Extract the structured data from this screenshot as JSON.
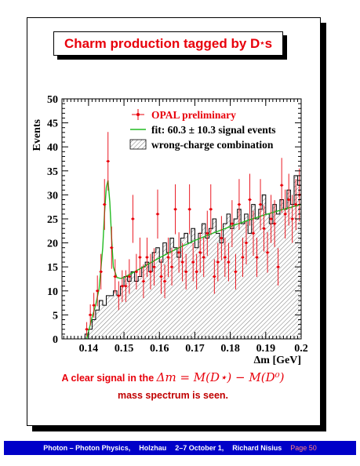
{
  "slide": {
    "title_text": "Charm production tagged by D",
    "title_star": "⋆",
    "title_s": "s",
    "caption_prefix": "A clear signal in the ",
    "caption_formula": "Δm = M(D⋆) − M(D⁰)",
    "caption_line2": "mass spectrum is seen."
  },
  "footer": {
    "talk": "Photon – Photon Physics,",
    "venue": "Holzhau",
    "dates": "2–7 October 1,",
    "speaker": "Richard Nisius",
    "page": "Page 50",
    "background_color": "#0000c8"
  },
  "chart_data": {
    "type": "scatter",
    "xlabel": "Δm [GeV]",
    "ylabel": "Events",
    "xlim": [
      0.1325,
      0.2
    ],
    "ylim": [
      0,
      50
    ],
    "xticks": [
      0.14,
      0.15,
      0.16,
      0.17,
      0.18,
      0.19,
      0.2
    ],
    "xtick_labels": [
      "0.14",
      "0.15",
      "0.16",
      "0.17",
      "0.18",
      "0.19",
      "0.2"
    ],
    "yticks": [
      0,
      5,
      10,
      15,
      20,
      25,
      30,
      35,
      40,
      45,
      50
    ],
    "ytick_labels": [
      "0",
      "5",
      "10",
      "15",
      "20",
      "25",
      "30",
      "35",
      "40",
      "45",
      "50"
    ],
    "bin_width": 0.001,
    "legend_position": "top-right",
    "legend": [
      {
        "label": "OPAL preliminary",
        "kind": "points",
        "color": "#e8000b"
      },
      {
        "label": "fit: 60.3 ± 10.3 signal events",
        "kind": "line",
        "color": "#22bb22"
      },
      {
        "label": "wrong-charge combination",
        "kind": "hatched",
        "color": "#555555"
      }
    ],
    "series": [
      {
        "name": "OPAL preliminary",
        "color": "#e8000b",
        "x": [
          0.1395,
          0.1405,
          0.1415,
          0.1425,
          0.1435,
          0.1445,
          0.1455,
          0.1465,
          0.1475,
          0.1485,
          0.1495,
          0.1505,
          0.1515,
          0.1525,
          0.1535,
          0.1545,
          0.1555,
          0.1565,
          0.1575,
          0.1585,
          0.1595,
          0.1605,
          0.1615,
          0.1625,
          0.1635,
          0.1645,
          0.1655,
          0.1665,
          0.1675,
          0.1685,
          0.1695,
          0.1705,
          0.1715,
          0.1725,
          0.1735,
          0.1745,
          0.1755,
          0.1765,
          0.1775,
          0.1785,
          0.1795,
          0.1805,
          0.1815,
          0.1825,
          0.1835,
          0.1845,
          0.1855,
          0.1865,
          0.1875,
          0.1885,
          0.1895,
          0.1905,
          0.1915,
          0.1925,
          0.1935,
          0.1945,
          0.1955,
          0.1965,
          0.1975,
          0.1985,
          0.1995
        ],
        "y": [
          2,
          5,
          7,
          10,
          14,
          28,
          37,
          19,
          13,
          9,
          11,
          11,
          13,
          25,
          14,
          17,
          12,
          17,
          14,
          15,
          26,
          13,
          12,
          17,
          15,
          27,
          18,
          16,
          14,
          27,
          16,
          14,
          18,
          17,
          22,
          27,
          13,
          16,
          21,
          17,
          16,
          24,
          14,
          28,
          17,
          20,
          29,
          22,
          17,
          28,
          23,
          18,
          25,
          24,
          15,
          32,
          26,
          29,
          25,
          28,
          30
        ],
        "yerr": [
          1.5,
          2.2,
          2.6,
          3.2,
          3.7,
          5.3,
          6.1,
          4.4,
          3.6,
          3.0,
          3.3,
          3.3,
          3.6,
          5.0,
          3.7,
          4.1,
          3.5,
          4.1,
          3.7,
          3.9,
          5.1,
          3.6,
          3.5,
          4.1,
          3.9,
          5.2,
          4.2,
          4.0,
          3.7,
          5.2,
          4.0,
          3.7,
          4.2,
          4.1,
          4.7,
          5.2,
          3.6,
          4.0,
          4.6,
          4.1,
          4.0,
          4.9,
          3.7,
          5.3,
          4.1,
          4.5,
          5.4,
          4.7,
          4.1,
          5.3,
          4.8,
          4.2,
          5.0,
          4.9,
          3.9,
          5.7,
          5.1,
          5.4,
          5.0,
          5.3,
          5.5
        ]
      },
      {
        "name": "wrong-charge combination",
        "bin_edges_start": 0.138,
        "bin_width": 0.001,
        "values": [
          0,
          1,
          2,
          4,
          6,
          8,
          7,
          9,
          9,
          10,
          9,
          11,
          13,
          12,
          14,
          12,
          13,
          15,
          16,
          14,
          18,
          19,
          16,
          20,
          18,
          21,
          19,
          17,
          21,
          22,
          20,
          23,
          19,
          22,
          24,
          21,
          23,
          25,
          22,
          20,
          24,
          26,
          23,
          25,
          27,
          24,
          26,
          22,
          28,
          25,
          27,
          30,
          26,
          24,
          28,
          26,
          29,
          27,
          31,
          28,
          34,
          32
        ]
      },
      {
        "name": "fit: 60.3 ± 10.3 signal events",
        "color": "#22bb22",
        "x": [
          0.1395,
          0.141,
          0.142,
          0.143,
          0.144,
          0.1445,
          0.145,
          0.1455,
          0.146,
          0.1465,
          0.147,
          0.148,
          0.149,
          0.15,
          0.152,
          0.155,
          0.16,
          0.165,
          0.17,
          0.175,
          0.18,
          0.185,
          0.19,
          0.195,
          0.2
        ],
        "y": [
          0,
          4.5,
          7,
          10.5,
          19,
          26,
          31.5,
          33,
          28.5,
          21,
          15,
          12.8,
          12.6,
          12.8,
          13.6,
          14.8,
          16.9,
          18.8,
          20.5,
          22,
          23.4,
          24.7,
          25.9,
          27,
          28
        ]
      }
    ]
  }
}
